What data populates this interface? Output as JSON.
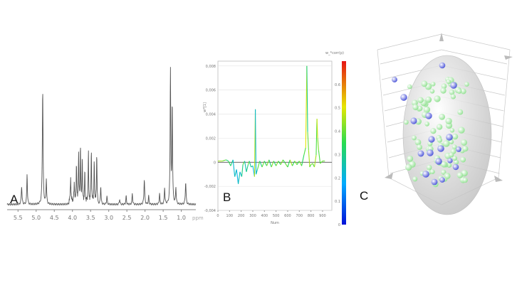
{
  "panels": {
    "a": "A",
    "b": "B",
    "c": "C"
  },
  "chart_data": [
    {
      "type": "line",
      "xlabel": "ppm",
      "x_reversed": true,
      "x_ticks": [
        "5.5",
        "5.0",
        "4.5",
        "4.0",
        "3.5",
        "3.0",
        "2.5",
        "2.0",
        "1.5",
        "1.0"
      ],
      "xlim": [
        5.8,
        0.6
      ],
      "ylim": [
        0,
        1
      ],
      "color": "#555555",
      "peaks": [
        {
          "x": 5.4,
          "h": 0.13,
          "w": 0.012
        },
        {
          "x": 5.25,
          "h": 0.22,
          "w": 0.01
        },
        {
          "x": 4.82,
          "h": 0.82,
          "w": 0.012
        },
        {
          "x": 4.72,
          "h": 0.18,
          "w": 0.01
        },
        {
          "x": 4.05,
          "h": 0.17,
          "w": 0.01
        },
        {
          "x": 3.95,
          "h": 0.13,
          "w": 0.01
        },
        {
          "x": 3.89,
          "h": 0.28,
          "w": 0.008
        },
        {
          "x": 3.83,
          "h": 0.35,
          "w": 0.008
        },
        {
          "x": 3.78,
          "h": 0.4,
          "w": 0.008
        },
        {
          "x": 3.73,
          "h": 0.31,
          "w": 0.008
        },
        {
          "x": 3.66,
          "h": 0.22,
          "w": 0.008
        },
        {
          "x": 3.56,
          "h": 0.36,
          "w": 0.008
        },
        {
          "x": 3.48,
          "h": 0.38,
          "w": 0.008
        },
        {
          "x": 3.4,
          "h": 0.29,
          "w": 0.008
        },
        {
          "x": 3.33,
          "h": 0.35,
          "w": 0.008
        },
        {
          "x": 3.22,
          "h": 0.13,
          "w": 0.01
        },
        {
          "x": 3.05,
          "h": 0.06,
          "w": 0.01
        },
        {
          "x": 2.7,
          "h": 0.04,
          "w": 0.01
        },
        {
          "x": 2.52,
          "h": 0.06,
          "w": 0.01
        },
        {
          "x": 2.35,
          "h": 0.08,
          "w": 0.01
        },
        {
          "x": 2.02,
          "h": 0.18,
          "w": 0.012
        },
        {
          "x": 1.9,
          "h": 0.06,
          "w": 0.01
        },
        {
          "x": 1.6,
          "h": 0.08,
          "w": 0.01
        },
        {
          "x": 1.46,
          "h": 0.12,
          "w": 0.01
        },
        {
          "x": 1.3,
          "h": 0.97,
          "w": 0.01
        },
        {
          "x": 1.25,
          "h": 0.72,
          "w": 0.01
        },
        {
          "x": 1.15,
          "h": 0.12,
          "w": 0.01
        },
        {
          "x": 0.88,
          "h": 0.16,
          "w": 0.012
        }
      ]
    },
    {
      "type": "line",
      "title": "w_*corr(p)",
      "ylabel": "w*[1]",
      "xlabel": "Num",
      "x_ticks": [
        0,
        100,
        200,
        300,
        400,
        500,
        600,
        700,
        800,
        900
      ],
      "y_ticks": [
        -0.004,
        -0.002,
        0,
        0.002,
        0.004,
        0.006,
        0.008
      ],
      "y_tick_labels": [
        "-0,004",
        "-0,002",
        "0",
        "0,002",
        "0,004",
        "0,006",
        "0,008"
      ],
      "xlim": [
        0,
        980
      ],
      "ylim": [
        -0.004,
        0.0084
      ],
      "colorbar_ticks": [
        0,
        0.1,
        0.2,
        0.3,
        0.4,
        0.5,
        0.6
      ],
      "colorbar_range": [
        0,
        0.7
      ],
      "points": [
        [
          0,
          0.0001
        ],
        [
          40,
          0.0001
        ],
        [
          70,
          0.0002
        ],
        [
          90,
          0.0001
        ],
        [
          110,
          -0.0003
        ],
        [
          130,
          0.0002
        ],
        [
          145,
          -0.0012
        ],
        [
          160,
          -0.0006
        ],
        [
          175,
          -0.0018
        ],
        [
          190,
          -0.0008
        ],
        [
          205,
          -0.0012
        ],
        [
          215,
          -0.0002
        ],
        [
          230,
          0.0001
        ],
        [
          245,
          -0.0008
        ],
        [
          260,
          -0.0002
        ],
        [
          270,
          0.0001
        ],
        [
          285,
          -0.0004
        ],
        [
          300,
          -0.0003
        ],
        [
          315,
          -0.0012
        ],
        [
          322,
          0.0044
        ],
        [
          328,
          -0.001
        ],
        [
          340,
          -0.0006
        ],
        [
          360,
          0.0001
        ],
        [
          380,
          -0.0004
        ],
        [
          400,
          0.0001
        ],
        [
          420,
          -0.0003
        ],
        [
          440,
          0.0002
        ],
        [
          460,
          -0.0004
        ],
        [
          480,
          0.0001
        ],
        [
          500,
          -0.0003
        ],
        [
          520,
          0.0001
        ],
        [
          540,
          -0.0002
        ],
        [
          560,
          0.0002
        ],
        [
          580,
          -0.0001
        ],
        [
          600,
          -0.0004
        ],
        [
          620,
          0.0002
        ],
        [
          640,
          -0.0003
        ],
        [
          660,
          0.0001
        ],
        [
          680,
          -0.0002
        ],
        [
          700,
          0.0001
        ],
        [
          720,
          -0.0003
        ],
        [
          740,
          0.0006
        ],
        [
          755,
          0.0012
        ],
        [
          765,
          0.008
        ],
        [
          772,
          0.0025
        ],
        [
          780,
          0.001
        ],
        [
          790,
          -0.0004
        ],
        [
          800,
          -0.0002
        ],
        [
          815,
          -0.0001
        ],
        [
          830,
          -0.0004
        ],
        [
          845,
          0.0006
        ],
        [
          852,
          0.0036
        ],
        [
          858,
          0.002
        ],
        [
          866,
          0.001
        ],
        [
          880,
          -0.0001
        ],
        [
          900,
          0.0001
        ],
        [
          920,
          0.0001
        ]
      ],
      "values_color": [
        0.4,
        0.45,
        0.4,
        0.3,
        0.35,
        0.3,
        0.22,
        0.25,
        0.2,
        0.25,
        0.22,
        0.3,
        0.38,
        0.25,
        0.3,
        0.4,
        0.28,
        0.3,
        0.2,
        0.46,
        0.22,
        0.25,
        0.38,
        0.3,
        0.4,
        0.32,
        0.42,
        0.3,
        0.42,
        0.32,
        0.42,
        0.34,
        0.42,
        0.36,
        0.4,
        0.35,
        0.45,
        0.34,
        0.42,
        0.36,
        0.42,
        0.34,
        0.38,
        0.5,
        0.3,
        0.4,
        0.45,
        0.38,
        0.42,
        0.38,
        0.45,
        0.38,
        0.48,
        0.42,
        0.38,
        0.4,
        0.4
      ]
    },
    {
      "type": "scatter",
      "groups": [
        {
          "color": "#8fe08f"
        },
        {
          "color": "#4750d8"
        }
      ]
    }
  ]
}
